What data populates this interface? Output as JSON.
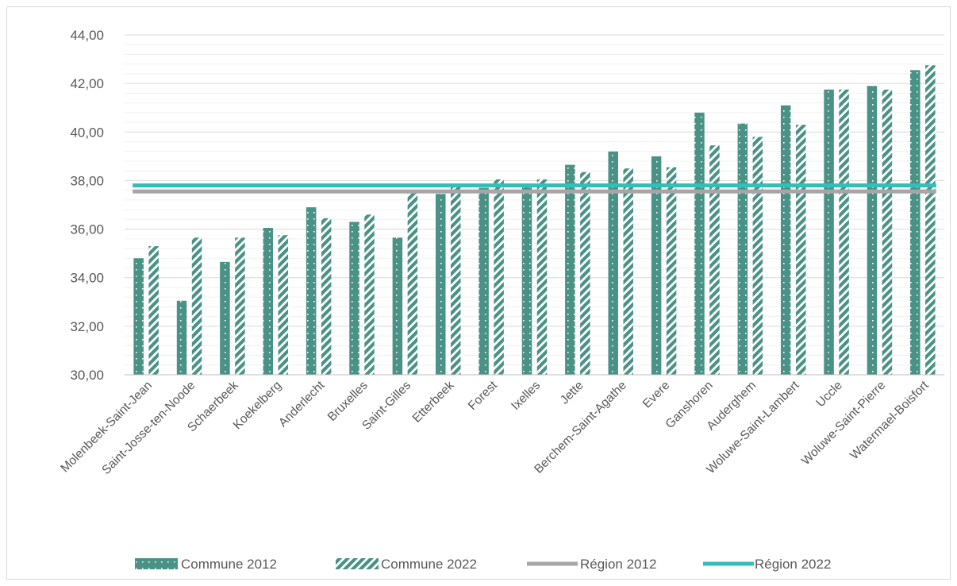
{
  "chart_data": {
    "type": "bar",
    "categories": [
      "Molenbeek-Saint-Jean",
      "Saint-Josse-ten-Noode",
      "Schaerbeek",
      "Koekelberg",
      "Anderlecht",
      "Bruxelles",
      "Saint-Gilles",
      "Etterbeek",
      "Forest",
      "Ixelles",
      "Jette",
      "Berchem-Saint-Agathe",
      "Evere",
      "Ganshoren",
      "Auderghem",
      "Woluwe-Saint-Lambert",
      "Uccle",
      "Woluwe-Saint-Pierre",
      "Watermael-Boisfort"
    ],
    "series": [
      {
        "name": "Commune 2012",
        "type": "bar",
        "pattern": "dotted",
        "color": "#4a9186",
        "values": [
          34.8,
          33.05,
          34.65,
          36.05,
          36.9,
          36.3,
          35.65,
          37.45,
          37.7,
          37.8,
          38.65,
          39.2,
          39.0,
          40.8,
          40.35,
          41.1,
          41.75,
          41.9,
          42.55
        ]
      },
      {
        "name": "Commune 2022",
        "type": "bar",
        "pattern": "hatched",
        "color": "#4a9186",
        "values": [
          35.3,
          35.65,
          35.65,
          35.75,
          36.45,
          36.6,
          37.5,
          37.75,
          38.05,
          38.05,
          38.35,
          38.5,
          38.55,
          39.45,
          39.8,
          40.3,
          41.75,
          41.75,
          42.75
        ]
      },
      {
        "name": "Région 2012",
        "type": "line",
        "color": "#a6a6a6",
        "value": 37.55
      },
      {
        "name": "Région 2022",
        "type": "line",
        "color": "#33bfb8",
        "value": 37.8
      }
    ],
    "ylim": [
      30,
      44
    ],
    "yticks": [
      "30,00",
      "32,00",
      "34,00",
      "36,00",
      "38,00",
      "40,00",
      "42,00",
      "44,00"
    ],
    "ytick_values": [
      30,
      32,
      34,
      36,
      38,
      40,
      42,
      44
    ],
    "grid": true,
    "legend_position": "bottom",
    "title": "",
    "xlabel": "",
    "ylabel": ""
  }
}
